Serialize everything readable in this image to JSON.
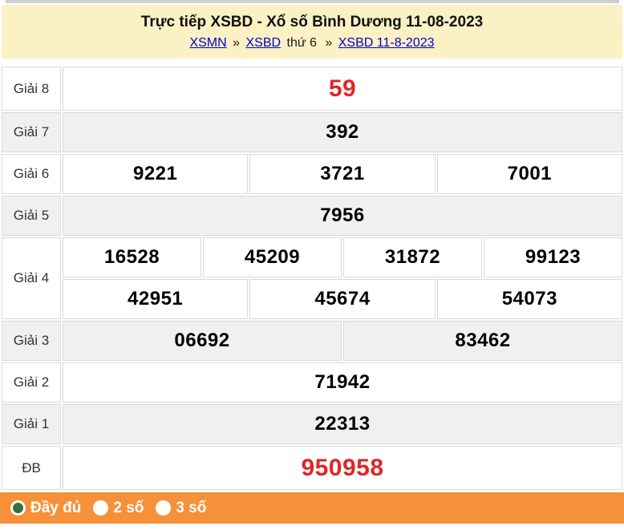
{
  "header": {
    "title": "Trực tiếp XSBD - Xổ số Bình Dương 11-08-2023",
    "breadcrumb": {
      "link1": "XSMN",
      "sep1": "»",
      "link2": "XSBD",
      "plain1": "thứ 6",
      "sep2": "»",
      "link3": "XSBD 11-8-2023"
    }
  },
  "results": {
    "rows": [
      {
        "label": "Giải 8",
        "numbers": [
          "59"
        ],
        "highlight": true
      },
      {
        "label": "Giải 7",
        "numbers": [
          "392"
        ],
        "highlight": false
      },
      {
        "label": "Giải 6",
        "numbers": [
          "9221",
          "3721",
          "7001"
        ],
        "highlight": false
      },
      {
        "label": "Giải 5",
        "numbers": [
          "7956"
        ],
        "highlight": false
      },
      {
        "label": "Giải 4",
        "numbers_line1": [
          "16528",
          "45209",
          "31872",
          "99123"
        ],
        "numbers_line2": [
          "42951",
          "45674",
          "54073"
        ],
        "highlight": false
      },
      {
        "label": "Giải 3",
        "numbers": [
          "06692",
          "83462"
        ],
        "highlight": false
      },
      {
        "label": "Giải 2",
        "numbers": [
          "71942"
        ],
        "highlight": false
      },
      {
        "label": "Giải 1",
        "numbers": [
          "22313"
        ],
        "highlight": false
      },
      {
        "label": "ĐB",
        "numbers": [
          "950958"
        ],
        "highlight": true
      }
    ]
  },
  "footer": {
    "options": [
      {
        "label": "Đầy đủ",
        "selected": true
      },
      {
        "label": "2 số",
        "selected": false
      },
      {
        "label": "3 số",
        "selected": false
      }
    ]
  },
  "colors": {
    "header_bg": "#FBF1C4",
    "highlight_red": "#e02626",
    "row_alt_gray": "#f0f0f0",
    "footer_orange": "#F6913A",
    "radio_dot_green": "#3A6B3E",
    "link_blue": "#0000cc"
  }
}
